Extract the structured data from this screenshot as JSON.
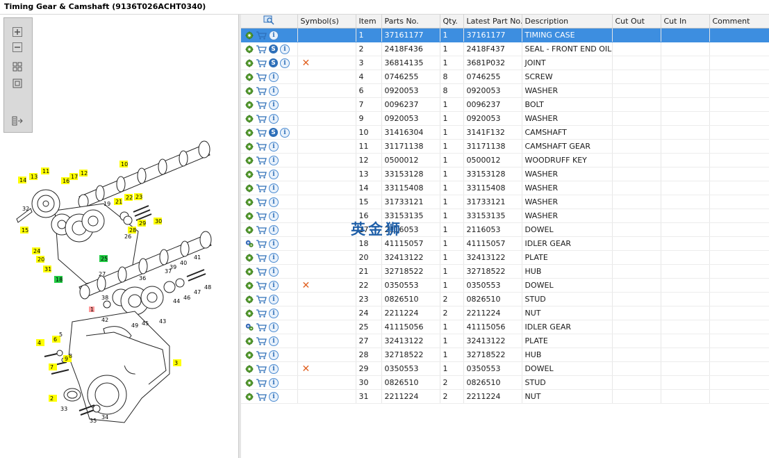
{
  "window": {
    "title": "Timing Gear & Camshaft (9136T026ACHT0340)"
  },
  "toolbar": {
    "buttons": [
      "zoom-in-icon",
      "zoom-out-icon",
      "fit-all-icon",
      "actual-size-icon",
      "export-icon"
    ]
  },
  "grid": {
    "columns": [
      "Symbol(s)",
      "Item",
      "Parts No.",
      "Qty.",
      "Latest Part No.",
      "Description",
      "Cut Out",
      "Cut In",
      "Comment"
    ],
    "rows": [
      {
        "item": "1",
        "part": "37161177",
        "qty": "1",
        "latest": "37161177",
        "desc": "TIMING CASE",
        "s": false,
        "x": false,
        "gear": "green"
      },
      {
        "item": "2",
        "part": "2418F436",
        "qty": "1",
        "latest": "2418F437",
        "desc": "SEAL - FRONT END OIL",
        "s": true,
        "x": false,
        "gear": "green"
      },
      {
        "item": "3",
        "part": "36814135",
        "qty": "1",
        "latest": "3681P032",
        "desc": "JOINT",
        "s": true,
        "x": true,
        "gear": "green"
      },
      {
        "item": "4",
        "part": "0746255",
        "qty": "8",
        "latest": "0746255",
        "desc": "SCREW",
        "s": false,
        "x": false,
        "gear": "green"
      },
      {
        "item": "6",
        "part": "0920053",
        "qty": "8",
        "latest": "0920053",
        "desc": "WASHER",
        "s": false,
        "x": false,
        "gear": "green"
      },
      {
        "item": "7",
        "part": "0096237",
        "qty": "1",
        "latest": "0096237",
        "desc": "BOLT",
        "s": false,
        "x": false,
        "gear": "green"
      },
      {
        "item": "9",
        "part": "0920053",
        "qty": "1",
        "latest": "0920053",
        "desc": "WASHER",
        "s": false,
        "x": false,
        "gear": "green"
      },
      {
        "item": "10",
        "part": "31416304",
        "qty": "1",
        "latest": "3141F132",
        "desc": "CAMSHAFT",
        "s": true,
        "x": false,
        "gear": "green"
      },
      {
        "item": "11",
        "part": "31171138",
        "qty": "1",
        "latest": "31171138",
        "desc": "CAMSHAFT GEAR",
        "s": false,
        "x": false,
        "gear": "green"
      },
      {
        "item": "12",
        "part": "0500012",
        "qty": "1",
        "latest": "0500012",
        "desc": "WOODRUFF KEY",
        "s": false,
        "x": false,
        "gear": "green"
      },
      {
        "item": "13",
        "part": "33153128",
        "qty": "1",
        "latest": "33153128",
        "desc": "WASHER",
        "s": false,
        "x": false,
        "gear": "green"
      },
      {
        "item": "14",
        "part": "33115408",
        "qty": "1",
        "latest": "33115408",
        "desc": "WASHER",
        "s": false,
        "x": false,
        "gear": "green"
      },
      {
        "item": "15",
        "part": "31733121",
        "qty": "1",
        "latest": "31733121",
        "desc": "WASHER",
        "s": false,
        "x": false,
        "gear": "green"
      },
      {
        "item": "16",
        "part": "33153135",
        "qty": "1",
        "latest": "33153135",
        "desc": "WASHER",
        "s": false,
        "x": false,
        "gear": "green"
      },
      {
        "item": "17",
        "part": "2116053",
        "qty": "1",
        "latest": "2116053",
        "desc": "DOWEL",
        "s": false,
        "x": false,
        "gear": "green"
      },
      {
        "item": "18",
        "part": "41115057",
        "qty": "1",
        "latest": "41115057",
        "desc": "IDLER GEAR",
        "s": false,
        "x": false,
        "gear": "assembly"
      },
      {
        "item": "20",
        "part": "32413122",
        "qty": "1",
        "latest": "32413122",
        "desc": "PLATE",
        "s": false,
        "x": false,
        "gear": "green"
      },
      {
        "item": "21",
        "part": "32718522",
        "qty": "1",
        "latest": "32718522",
        "desc": "HUB",
        "s": false,
        "x": false,
        "gear": "green"
      },
      {
        "item": "22",
        "part": "0350553",
        "qty": "1",
        "latest": "0350553",
        "desc": "DOWEL",
        "s": false,
        "x": true,
        "gear": "green"
      },
      {
        "item": "23",
        "part": "0826510",
        "qty": "2",
        "latest": "0826510",
        "desc": "STUD",
        "s": false,
        "x": false,
        "gear": "green"
      },
      {
        "item": "24",
        "part": "2211224",
        "qty": "2",
        "latest": "2211224",
        "desc": "NUT",
        "s": false,
        "x": false,
        "gear": "green"
      },
      {
        "item": "25",
        "part": "41115056",
        "qty": "1",
        "latest": "41115056",
        "desc": "IDLER GEAR",
        "s": false,
        "x": false,
        "gear": "assembly"
      },
      {
        "item": "27",
        "part": "32413122",
        "qty": "1",
        "latest": "32413122",
        "desc": "PLATE",
        "s": false,
        "x": false,
        "gear": "green"
      },
      {
        "item": "28",
        "part": "32718522",
        "qty": "1",
        "latest": "32718522",
        "desc": "HUB",
        "s": false,
        "x": false,
        "gear": "green"
      },
      {
        "item": "29",
        "part": "0350553",
        "qty": "1",
        "latest": "0350553",
        "desc": "DOWEL",
        "s": false,
        "x": true,
        "gear": "green"
      },
      {
        "item": "30",
        "part": "0826510",
        "qty": "2",
        "latest": "0826510",
        "desc": "STUD",
        "s": false,
        "x": false,
        "gear": "green"
      },
      {
        "item": "31",
        "part": "2211224",
        "qty": "2",
        "latest": "2211224",
        "desc": "NUT",
        "s": false,
        "x": false,
        "gear": "green"
      }
    ]
  },
  "diagram": {
    "callouts": [
      "1",
      "2",
      "3",
      "4",
      "5",
      "6",
      "7",
      "8",
      "9",
      "10",
      "11",
      "12",
      "13",
      "14",
      "15",
      "16",
      "17",
      "18",
      "19",
      "20",
      "21",
      "22",
      "23",
      "24",
      "25",
      "26",
      "27",
      "28",
      "29",
      "30",
      "31",
      "32",
      "33",
      "34",
      "35",
      "36",
      "37",
      "38",
      "39",
      "40",
      "41",
      "42",
      "43",
      "44",
      "45",
      "46",
      "47",
      "48",
      "49"
    ]
  },
  "watermark": "英金狮",
  "colors": {
    "selected_row": "#3d8ee0",
    "callout_yellow": "#ffff00",
    "callout_green": "#22cc44",
    "callout_red": "#ff9999",
    "x_mark": "#e06020"
  }
}
